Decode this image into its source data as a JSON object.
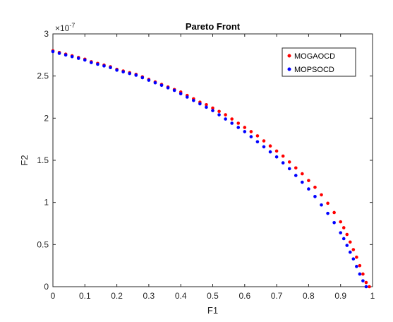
{
  "chart_data": {
    "type": "scatter",
    "title": "Pareto Front",
    "xlabel": "F1",
    "ylabel": "F2",
    "xlim": [
      0,
      1
    ],
    "ylim": [
      0,
      3
    ],
    "y_exponent_label": "×10",
    "y_exponent_power": "-7",
    "x_ticks": [
      "0",
      "0.1",
      "0.2",
      "0.3",
      "0.4",
      "0.5",
      "0.6",
      "0.7",
      "0.8",
      "0.9",
      "1"
    ],
    "y_ticks": [
      "0",
      "0.5",
      "1",
      "1.5",
      "2",
      "2.5",
      "3"
    ],
    "grid": false,
    "legend_position": "top-right",
    "series": [
      {
        "name": "MOGAOCD",
        "color": "#ff0000",
        "x": [
          0.0,
          0.02,
          0.04,
          0.06,
          0.08,
          0.1,
          0.12,
          0.14,
          0.16,
          0.18,
          0.2,
          0.22,
          0.24,
          0.26,
          0.28,
          0.3,
          0.32,
          0.34,
          0.36,
          0.38,
          0.4,
          0.42,
          0.44,
          0.46,
          0.48,
          0.5,
          0.52,
          0.54,
          0.56,
          0.58,
          0.6,
          0.62,
          0.64,
          0.66,
          0.68,
          0.7,
          0.72,
          0.74,
          0.76,
          0.78,
          0.8,
          0.82,
          0.84,
          0.86,
          0.88,
          0.9,
          0.91,
          0.92,
          0.93,
          0.94,
          0.95,
          0.96,
          0.97,
          0.98,
          0.99
        ],
        "y": [
          2.8,
          2.78,
          2.76,
          2.74,
          2.72,
          2.7,
          2.67,
          2.65,
          2.63,
          2.61,
          2.58,
          2.56,
          2.54,
          2.52,
          2.49,
          2.46,
          2.43,
          2.4,
          2.37,
          2.34,
          2.31,
          2.27,
          2.23,
          2.19,
          2.16,
          2.12,
          2.08,
          2.04,
          1.99,
          1.94,
          1.89,
          1.84,
          1.79,
          1.73,
          1.67,
          1.61,
          1.55,
          1.48,
          1.41,
          1.34,
          1.26,
          1.18,
          1.09,
          0.99,
          0.88,
          0.77,
          0.7,
          0.62,
          0.53,
          0.44,
          0.35,
          0.25,
          0.15,
          0.05,
          0.0
        ]
      },
      {
        "name": "MOPSOCD",
        "color": "#0000ff",
        "x": [
          0.0,
          0.02,
          0.04,
          0.06,
          0.08,
          0.1,
          0.12,
          0.14,
          0.16,
          0.18,
          0.2,
          0.22,
          0.24,
          0.26,
          0.28,
          0.3,
          0.32,
          0.34,
          0.36,
          0.38,
          0.4,
          0.42,
          0.44,
          0.46,
          0.48,
          0.5,
          0.52,
          0.54,
          0.56,
          0.58,
          0.6,
          0.62,
          0.64,
          0.66,
          0.68,
          0.7,
          0.72,
          0.74,
          0.76,
          0.78,
          0.8,
          0.82,
          0.84,
          0.86,
          0.88,
          0.9,
          0.91,
          0.92,
          0.93,
          0.94,
          0.95,
          0.96,
          0.97,
          0.98
        ],
        "y": [
          2.79,
          2.77,
          2.75,
          2.73,
          2.71,
          2.69,
          2.66,
          2.64,
          2.62,
          2.6,
          2.57,
          2.55,
          2.53,
          2.51,
          2.48,
          2.45,
          2.42,
          2.39,
          2.36,
          2.33,
          2.29,
          2.25,
          2.21,
          2.17,
          2.13,
          2.09,
          2.04,
          1.99,
          1.94,
          1.89,
          1.84,
          1.78,
          1.72,
          1.66,
          1.6,
          1.54,
          1.47,
          1.4,
          1.32,
          1.24,
          1.16,
          1.07,
          0.97,
          0.87,
          0.76,
          0.64,
          0.57,
          0.49,
          0.41,
          0.33,
          0.24,
          0.15,
          0.07,
          0.0
        ]
      }
    ]
  }
}
